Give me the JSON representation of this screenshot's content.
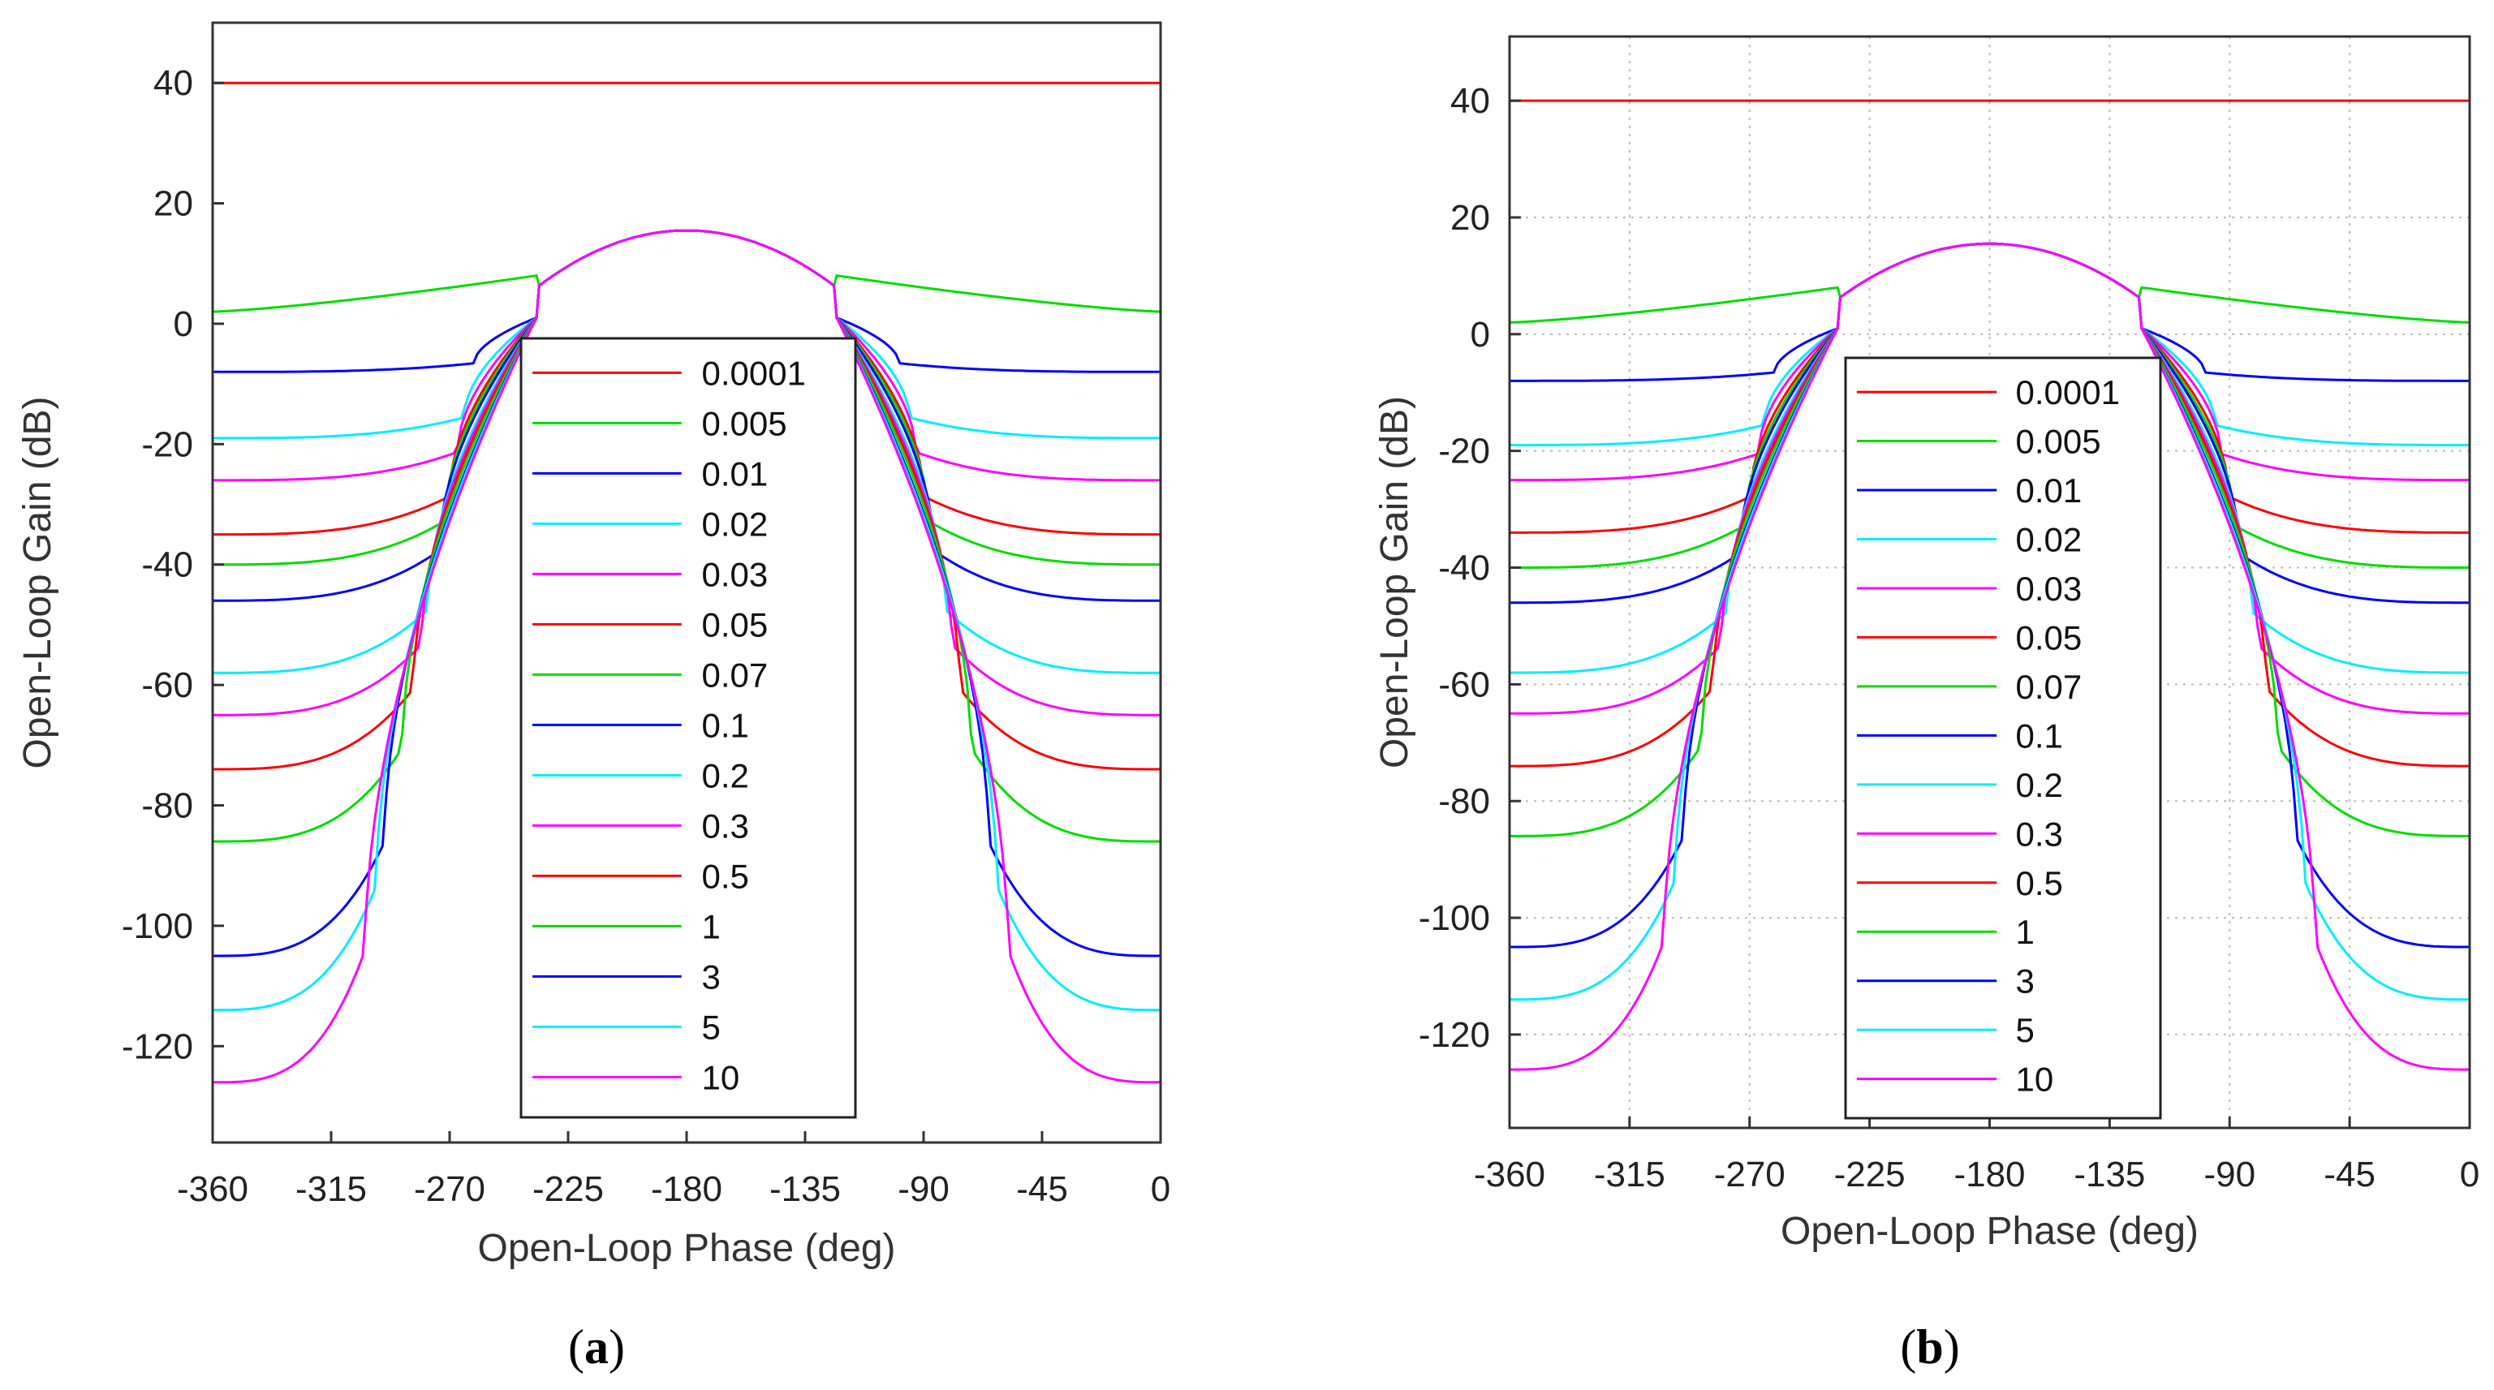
{
  "chart_data": [
    {
      "type": "line",
      "panel": "a",
      "title": "",
      "xlabel": "Open-Loop Phase (deg)",
      "ylabel": "Open-Loop Gain (dB)",
      "xlim": [
        -360,
        0
      ],
      "ylim": [
        -136,
        50
      ],
      "xticks": [
        -360,
        -315,
        -270,
        -225,
        -180,
        -135,
        -90,
        -45,
        0
      ],
      "yticks": [
        40,
        20,
        0,
        -20,
        -40,
        -60,
        -80,
        -100,
        -120
      ],
      "grid": false,
      "legend_position": "center",
      "series": [
        {
          "name": "0.0001",
          "color": "#ff0000",
          "edge_gain": 40
        },
        {
          "name": "0.005",
          "color": "#00dd00",
          "edge_gain": 2
        },
        {
          "name": "0.01",
          "color": "#0000ff",
          "edge_gain": -8
        },
        {
          "name": "0.02",
          "color": "#00eeff",
          "edge_gain": -19
        },
        {
          "name": "0.03",
          "color": "#ff00ff",
          "edge_gain": -26
        },
        {
          "name": "0.05",
          "color": "#ff0000",
          "edge_gain": -35
        },
        {
          "name": "0.07",
          "color": "#00dd00",
          "edge_gain": -40
        },
        {
          "name": "0.1",
          "color": "#0000ff",
          "edge_gain": -46
        },
        {
          "name": "0.2",
          "color": "#00eeff",
          "edge_gain": -58
        },
        {
          "name": "0.3",
          "color": "#ff00ff",
          "edge_gain": -65
        },
        {
          "name": "0.5",
          "color": "#ff0000",
          "edge_gain": -74
        },
        {
          "name": "1",
          "color": "#00dd00",
          "edge_gain": -86
        },
        {
          "name": "3",
          "color": "#0000ff",
          "edge_gain": -105
        },
        {
          "name": "5",
          "color": "#00eeff",
          "edge_gain": -114
        },
        {
          "name": "10",
          "color": "#ff00ff",
          "edge_gain": -126
        }
      ],
      "dome_peak_gain": 15.5
    },
    {
      "type": "line",
      "panel": "b",
      "title": "",
      "xlabel": "Open-Loop Phase (deg)",
      "ylabel": "Open-Loop Gain (dB)",
      "xlim": [
        -360,
        0
      ],
      "ylim": [
        -136,
        51
      ],
      "xticks": [
        -360,
        -315,
        -270,
        -225,
        -180,
        -135,
        -90,
        -45,
        0
      ],
      "yticks": [
        40,
        20,
        0,
        -20,
        -40,
        -60,
        -80,
        -100,
        -120
      ],
      "grid": true,
      "legend_position": "center",
      "series": [
        {
          "name": "0.0001",
          "color": "#ff0000",
          "edge_gain": 40
        },
        {
          "name": "0.005",
          "color": "#00dd00",
          "edge_gain": 2
        },
        {
          "name": "0.01",
          "color": "#0000ff",
          "edge_gain": -8
        },
        {
          "name": "0.02",
          "color": "#00eeff",
          "edge_gain": -19
        },
        {
          "name": "0.03",
          "color": "#ff00ff",
          "edge_gain": -25
        },
        {
          "name": "0.05",
          "color": "#ff0000",
          "edge_gain": -34
        },
        {
          "name": "0.07",
          "color": "#00dd00",
          "edge_gain": -40
        },
        {
          "name": "0.1",
          "color": "#0000ff",
          "edge_gain": -46
        },
        {
          "name": "0.2",
          "color": "#00eeff",
          "edge_gain": -58
        },
        {
          "name": "0.3",
          "color": "#ff00ff",
          "edge_gain": -65
        },
        {
          "name": "0.5",
          "color": "#ff0000",
          "edge_gain": -74
        },
        {
          "name": "1",
          "color": "#00dd00",
          "edge_gain": -86
        },
        {
          "name": "3",
          "color": "#0000ff",
          "edge_gain": -105
        },
        {
          "name": "5",
          "color": "#00eeff",
          "edge_gain": -114
        },
        {
          "name": "10",
          "color": "#ff00ff",
          "edge_gain": -126
        }
      ],
      "dome_peak_gain": 15.5
    }
  ],
  "panel_labels": [
    "a",
    "b"
  ]
}
